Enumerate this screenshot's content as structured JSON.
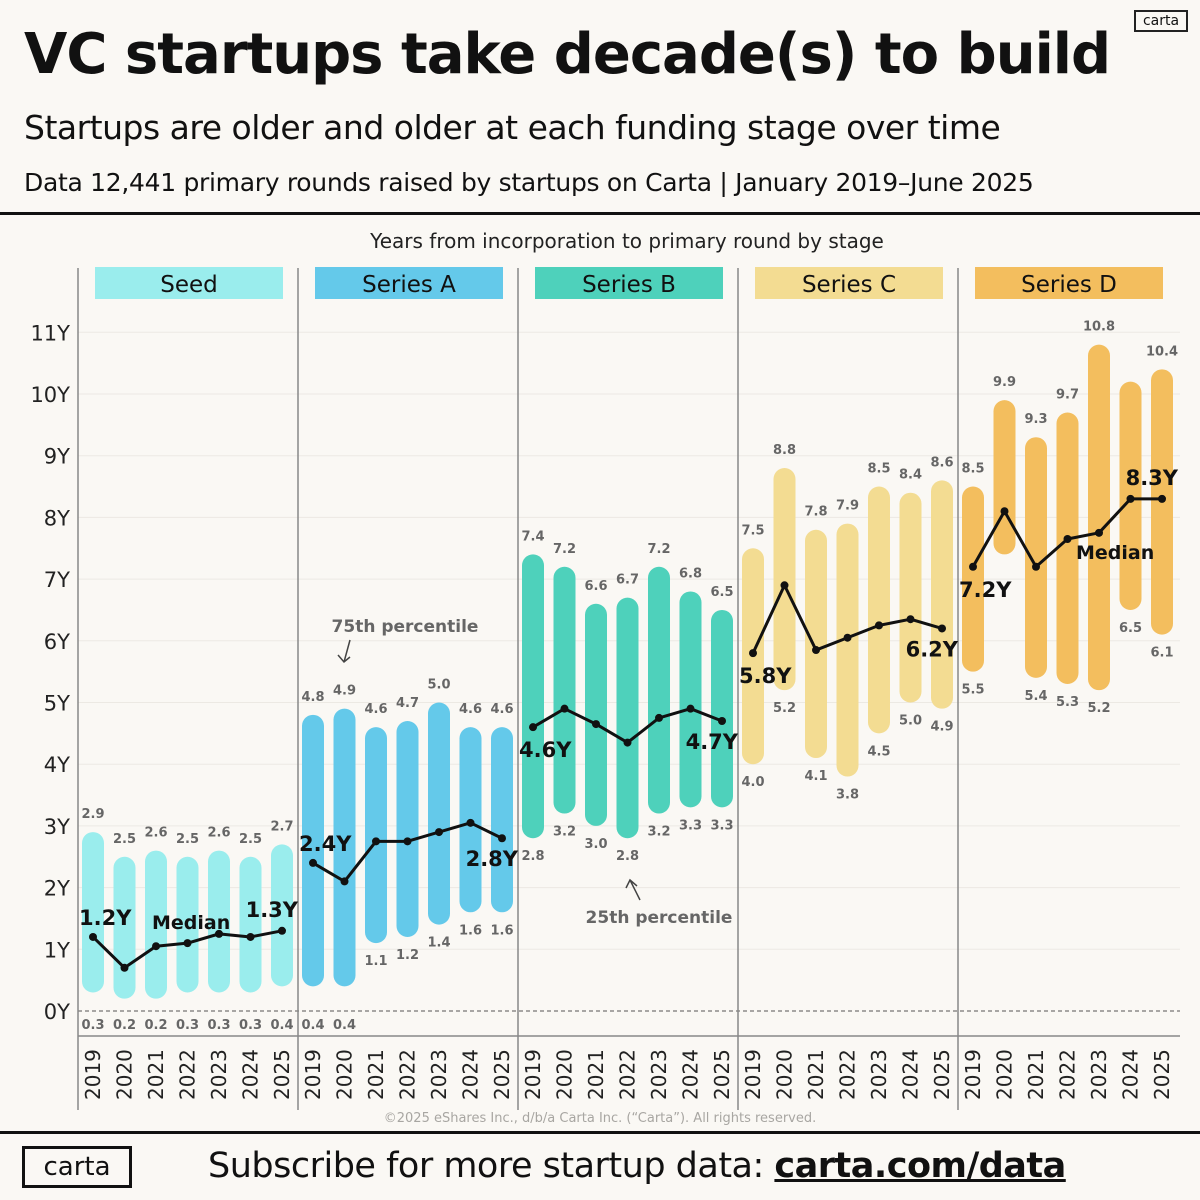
{
  "header": {
    "logo_small": "carta",
    "title": "VC startups take decade(s) to build",
    "subtitle": "Startups are older and older at each funding stage over time",
    "data_line": "Data 12,441 primary rounds raised by startups on Carta  |  January 2019–June 2025"
  },
  "footer": {
    "copyright": "©2025 eShares Inc., d/b/a Carta Inc. (“Carta”). All rights reserved.",
    "logo": "carta",
    "subscribe_text": "Subscribe for more startup data: ",
    "subscribe_link": "carta.com/data"
  },
  "chart_data": {
    "type": "bar",
    "subtype": "floating-range-with-median-line",
    "title": "Years from incorporation to primary round by stage",
    "ylabel": "Years",
    "ylim": [
      0,
      11
    ],
    "y_ticks": [
      "0Y",
      "1Y",
      "2Y",
      "3Y",
      "4Y",
      "5Y",
      "6Y",
      "7Y",
      "8Y",
      "9Y",
      "10Y",
      "11Y"
    ],
    "grid": true,
    "categories": [
      "2019",
      "2020",
      "2021",
      "2022",
      "2023",
      "2024",
      "2025"
    ],
    "annotations": {
      "p75": "75th percentile",
      "p25": "25th percentile",
      "median": "Median"
    },
    "stages": [
      {
        "name": "Seed",
        "color": "#9aeded",
        "p75": [
          2.9,
          2.5,
          2.6,
          2.5,
          2.6,
          2.5,
          2.7
        ],
        "p25": [
          0.3,
          0.2,
          0.2,
          0.3,
          0.3,
          0.3,
          0.4
        ],
        "median": [
          1.2,
          0.7,
          1.05,
          1.1,
          1.25,
          1.2,
          1.3
        ],
        "median_labels": [
          "1.2Y",
          "",
          "",
          "",
          "",
          "",
          "1.3Y"
        ]
      },
      {
        "name": "Series A",
        "color": "#64c9ea",
        "p75": [
          4.8,
          4.9,
          4.6,
          4.7,
          5.0,
          4.6,
          4.6
        ],
        "p25": [
          0.4,
          0.4,
          1.1,
          1.2,
          1.4,
          1.6,
          1.6
        ],
        "median": [
          2.4,
          2.1,
          2.75,
          2.75,
          2.9,
          3.05,
          2.8
        ],
        "median_labels": [
          "2.4Y",
          "",
          "",
          "",
          "",
          "",
          "2.8Y"
        ]
      },
      {
        "name": "Series B",
        "color": "#4ed1bb",
        "p75": [
          7.4,
          7.2,
          6.6,
          6.7,
          7.2,
          6.8,
          6.5
        ],
        "p25": [
          2.8,
          3.2,
          3.0,
          2.8,
          3.2,
          3.3,
          3.3
        ],
        "median": [
          4.6,
          4.9,
          4.65,
          4.35,
          4.75,
          4.9,
          4.7
        ],
        "median_labels": [
          "4.6Y",
          "",
          "",
          "",
          "",
          "",
          "4.7Y"
        ]
      },
      {
        "name": "Series C",
        "color": "#f3dc92",
        "p75": [
          7.5,
          8.8,
          7.8,
          7.9,
          8.5,
          8.4,
          8.6
        ],
        "p25": [
          4.0,
          5.2,
          4.1,
          3.8,
          4.5,
          5.0,
          4.9
        ],
        "median": [
          5.8,
          6.9,
          5.85,
          6.05,
          6.25,
          6.35,
          6.2
        ],
        "median_labels": [
          "5.8Y",
          "",
          "",
          "",
          "",
          "",
          "6.2Y"
        ]
      },
      {
        "name": "Series D",
        "color": "#f3be5e",
        "p75": [
          8.5,
          9.9,
          9.3,
          9.7,
          10.8,
          10.2,
          10.4
        ],
        "p75_labels": [
          "8.5",
          "9.9",
          "9.3",
          "9.7",
          "10.8",
          "",
          "10.4"
        ],
        "p25": [
          5.5,
          7.4,
          5.4,
          5.3,
          5.2,
          6.5,
          6.1
        ],
        "p25_labels": [
          "5.5",
          "",
          "5.4",
          "5.3",
          "5.2",
          "6.5",
          "6.1"
        ],
        "median": [
          7.2,
          8.1,
          7.2,
          7.65,
          7.75,
          8.3,
          8.3
        ],
        "median_labels": [
          "7.2Y",
          "",
          "",
          "",
          "",
          "",
          "8.3Y"
        ]
      }
    ]
  }
}
